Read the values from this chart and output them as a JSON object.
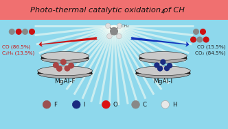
{
  "bg_color": "#8ed8ec",
  "header_color": "#f07070",
  "title": "Photo-thermal catalytic oxidation of CH",
  "title_4": "4",
  "left_label": "MgAl-F",
  "right_label": "MgAl-I",
  "left_co": "CO (86.5%)",
  "left_c2h6": "C₂H₆ (13.5%)",
  "right_co": "CO (15.5%)",
  "right_co2": "CO₂ (84.5%)",
  "arrow_left_color": "#cc1111",
  "arrow_right_color": "#1133bb",
  "ray_color": "#fffff0",
  "legend_items": [
    {
      "label": "F",
      "color": "#9b5050",
      "ec": "#9b5050"
    },
    {
      "label": "I",
      "color": "#1a2b80",
      "ec": "#1a2b80"
    },
    {
      "label": "O",
      "color": "#dd1111",
      "ec": "#dd1111"
    },
    {
      "label": "C",
      "color": "#888888",
      "ec": "#888888"
    },
    {
      "label": "H",
      "color": "#e8e8e8",
      "ec": "#aaaaaa"
    }
  ],
  "disc_top_color": "#cacaca",
  "disc_edge_color": "#1a1a1a",
  "disc_side_color": "#111111",
  "disc_bot_color": "#aaaaaa",
  "f_atom_color": "#aa4444",
  "i_atom_color": "#1a2b80",
  "c_atom_color": "#888888",
  "h_atom_color": "#e0e0e0",
  "o_atom_color": "#cc1111"
}
